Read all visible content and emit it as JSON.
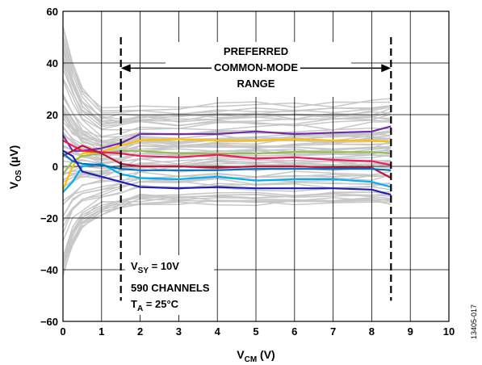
{
  "chart_data": {
    "type": "line",
    "xlabel": {
      "main": "V",
      "sub": "CM",
      "unit": " (V)"
    },
    "ylabel": {
      "main": "V",
      "sub": "OS",
      "unit": " (µV)"
    },
    "xlim": [
      0,
      10
    ],
    "ylim": [
      -60,
      60
    ],
    "xticks": [
      "0",
      "1",
      "2",
      "3",
      "4",
      "5",
      "6",
      "7",
      "8",
      "9",
      "10"
    ],
    "yticks": [
      "−60",
      "−40",
      "−20",
      "0",
      "20",
      "40",
      "60"
    ],
    "grid": true,
    "annotations": {
      "range_lines": [
        1.5,
        8.5
      ],
      "range_line1": "PREFERRED",
      "range_line2": "COMMON-MODE",
      "range_line3": "RANGE",
      "cond_vsy_main": "V",
      "cond_vsy_sub": "SY",
      "cond_vsy_rest": " = 10V",
      "cond_channels": "590 CHANNELS",
      "cond_ta_main": "T",
      "cond_ta_sub": "A",
      "cond_ta_rest": " = 25°C"
    },
    "figure_id": "13405-017",
    "x": [
      0,
      0.25,
      0.5,
      1,
      1.5,
      2,
      3,
      4,
      5,
      6,
      7,
      8,
      8.5
    ],
    "series": [
      {
        "color": "#7030a0",
        "values": [
          12,
          6,
          6,
          7,
          9,
          12.5,
          12.5,
          12.5,
          13.5,
          12.5,
          13,
          13.5,
          15.5
        ]
      },
      {
        "color": "#ffc000",
        "values": [
          -9,
          0,
          5,
          5.5,
          8,
          10,
          10.5,
          10,
          10,
          10.5,
          10,
          10,
          9.5
        ]
      },
      {
        "color": "#9bbb59",
        "values": [
          -3,
          2,
          4,
          5,
          6,
          6,
          5,
          5,
          5,
          5.5,
          5.5,
          5.5,
          5
        ]
      },
      {
        "color": "#ed1c5c",
        "values": [
          10,
          8,
          6,
          5.5,
          5,
          4,
          3.5,
          4.5,
          3,
          3.5,
          2.5,
          2,
          0.5
        ]
      },
      {
        "color": "#c0143c",
        "values": [
          4,
          6,
          8,
          5,
          1,
          0,
          0,
          -0.5,
          0,
          0,
          -0.5,
          -0.5,
          -4.5
        ]
      },
      {
        "color": "#00b0f0",
        "values": [
          -10,
          -6,
          0,
          1,
          -3,
          -4.5,
          -5,
          -4,
          -5.5,
          -5,
          -5,
          -6,
          -8
        ]
      },
      {
        "color": "#0070c0",
        "values": [
          5,
          2,
          1,
          0.5,
          -1,
          -1.5,
          -1.5,
          -1.5,
          -1,
          -1,
          -1,
          -1,
          -1.5
        ]
      },
      {
        "color": "#1f1fb4",
        "values": [
          6,
          4,
          -2,
          -4,
          -6,
          -8,
          -8.5,
          -8,
          -8.5,
          -8.5,
          -8.5,
          -9,
          -11
        ]
      }
    ],
    "background_channels": {
      "count": 590,
      "color": "#c8c8c8",
      "envelope_top": [
        55,
        40,
        30,
        22,
        22,
        23,
        23,
        24,
        24,
        24,
        24,
        25,
        26
      ],
      "envelope_bottom": [
        -42,
        -30,
        -23,
        -18,
        -16,
        -14,
        -14,
        -14,
        -14,
        -14,
        -14,
        -14,
        -14
      ]
    }
  }
}
